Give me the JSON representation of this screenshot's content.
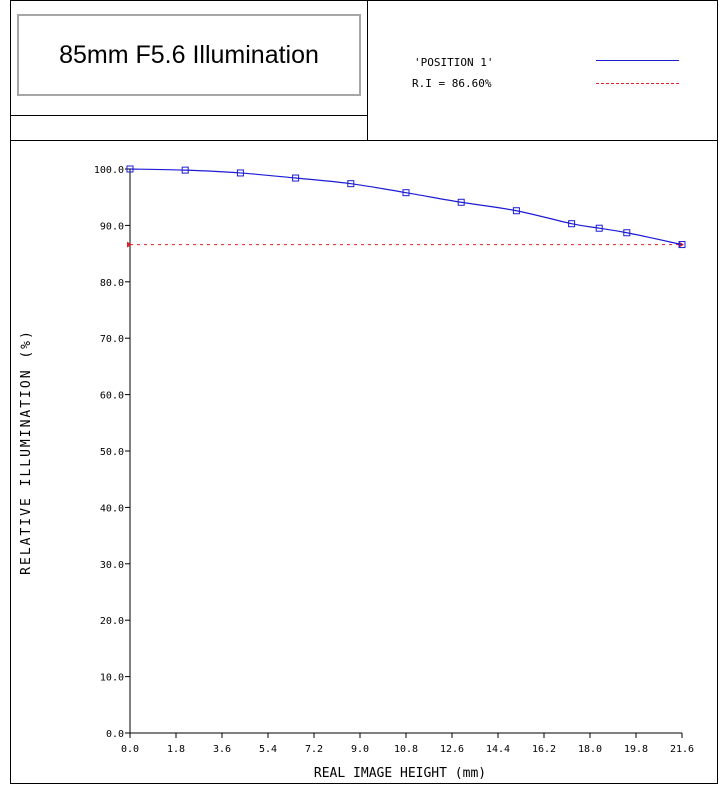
{
  "header": {
    "title": "85mm F5.6 Illumination",
    "legend_series_label": "'POSITION 1'",
    "legend_ri_label": "R.I = 86.60%"
  },
  "colors": {
    "series": "#1c1cd4",
    "reference": "#e0202e"
  },
  "chart_data": {
    "type": "line",
    "xlabel": "REAL IMAGE HEIGHT (mm)",
    "ylabel": "RELATIVE ILLUMINATION (%)",
    "xlim": [
      0,
      21.6
    ],
    "ylim": [
      0,
      100
    ],
    "x_ticks": [
      "0.0",
      "1.8",
      "3.6",
      "5.4",
      "7.2",
      "9.0",
      "10.8",
      "12.6",
      "14.4",
      "16.2",
      "18.0",
      "19.8",
      "21.6"
    ],
    "y_ticks": [
      "0.0",
      "10.0",
      "20.0",
      "30.0",
      "40.0",
      "50.0",
      "60.0",
      "70.0",
      "80.0",
      "90.0",
      "100.0"
    ],
    "grid": false,
    "series": [
      {
        "name": "'POSITION 1'",
        "style": "solid",
        "markers": "square",
        "x": [
          0.0,
          2.16,
          4.32,
          6.48,
          8.64,
          10.8,
          12.96,
          15.12,
          17.28,
          18.36,
          19.44,
          21.6
        ],
        "y": [
          100.0,
          99.8,
          99.3,
          98.4,
          97.4,
          95.8,
          94.1,
          92.6,
          90.3,
          89.5,
          88.7,
          86.6
        ]
      },
      {
        "name": "R.I = 86.60%",
        "style": "dotted",
        "x": [
          0.0,
          21.6
        ],
        "y": [
          86.6,
          86.6
        ]
      }
    ]
  }
}
